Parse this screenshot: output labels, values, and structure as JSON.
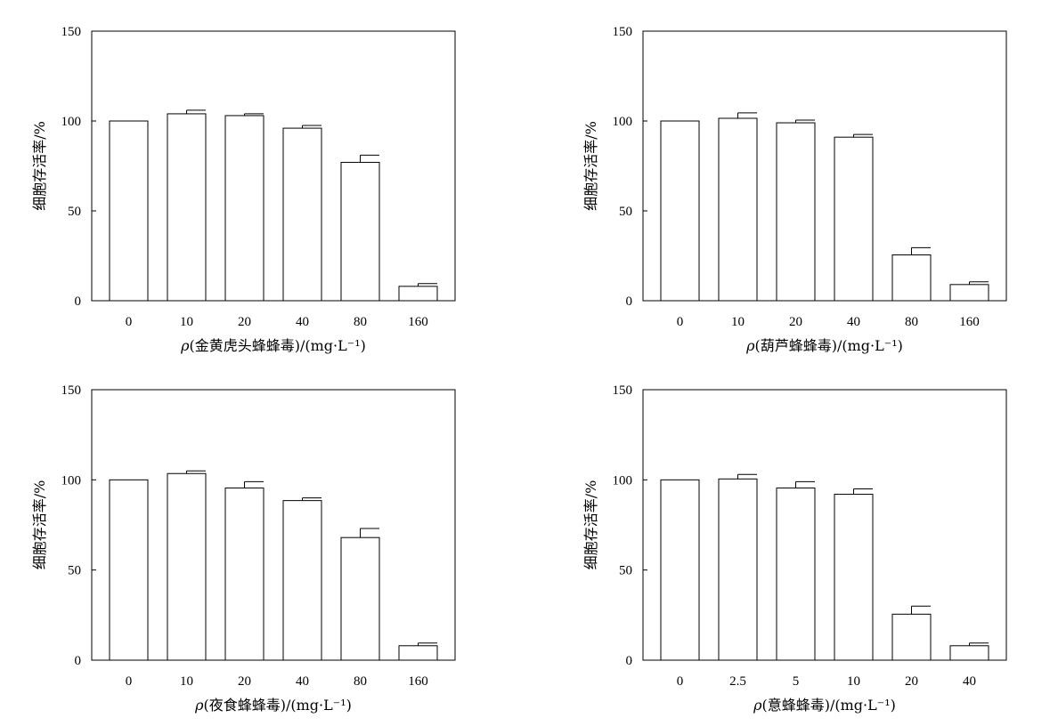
{
  "chart_data": [
    {
      "type": "bar",
      "categories": [
        "0",
        "10",
        "20",
        "40",
        "80",
        "160"
      ],
      "values": [
        100,
        104,
        103,
        96,
        77,
        8
      ],
      "errors": [
        0,
        2,
        1,
        1.5,
        4,
        1.5
      ],
      "xlabel_var": "ρ",
      "xlabel_rest": "(金黄虎头蜂蜂毒)/(mg·L⁻¹)",
      "ylabel": "细胞存活率/%",
      "ylim": [
        0,
        150
      ],
      "yticks": [
        "0",
        "50",
        "100",
        "150"
      ]
    },
    {
      "type": "bar",
      "categories": [
        "0",
        "10",
        "20",
        "40",
        "80",
        "160"
      ],
      "values": [
        100,
        101.5,
        99,
        91,
        25.5,
        9
      ],
      "errors": [
        0,
        3,
        1.5,
        1.5,
        4,
        1.5
      ],
      "xlabel_var": "ρ",
      "xlabel_rest": "(葫芦蜂蜂毒)/(mg·L⁻¹)",
      "ylabel": "细胞存活率/%",
      "ylim": [
        0,
        150
      ],
      "yticks": [
        "0",
        "50",
        "100",
        "150"
      ]
    },
    {
      "type": "bar",
      "categories": [
        "0",
        "10",
        "20",
        "40",
        "80",
        "160"
      ],
      "values": [
        100,
        103.5,
        95.5,
        88.5,
        68,
        8
      ],
      "errors": [
        0,
        1.5,
        3.5,
        1.5,
        5,
        1.5
      ],
      "xlabel_var": "ρ",
      "xlabel_rest": "(夜食蜂蜂毒)/(mg·L⁻¹)",
      "ylabel": "细胞存活率/%",
      "ylim": [
        0,
        150
      ],
      "yticks": [
        "0",
        "50",
        "100",
        "150"
      ]
    },
    {
      "type": "bar",
      "categories": [
        "0",
        "2.5",
        "5",
        "10",
        "20",
        "40"
      ],
      "values": [
        100,
        100.5,
        95.5,
        92,
        25.5,
        8
      ],
      "errors": [
        0,
        2.5,
        3.5,
        3,
        4.5,
        1.5
      ],
      "xlabel_var": "ρ",
      "xlabel_rest": "(意蜂蜂毒)/(mg·L⁻¹)",
      "ylabel": "细胞存活率/%",
      "ylim": [
        0,
        150
      ],
      "yticks": [
        "0",
        "50",
        "100",
        "150"
      ]
    }
  ]
}
